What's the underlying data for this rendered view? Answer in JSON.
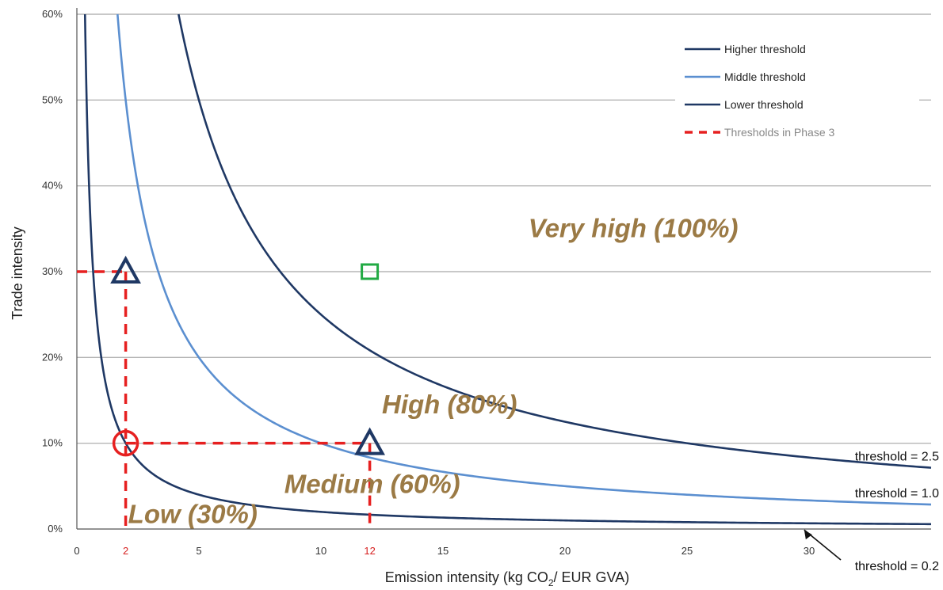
{
  "chart_data": {
    "type": "line",
    "xlabel_main": "Emission intensity (kg CO",
    "xlabel_sub": "2",
    "xlabel_tail": "/ EUR GVA)",
    "ylabel": "Trade intensity",
    "xlim": [
      0,
      35
    ],
    "ylim": [
      0,
      60
    ],
    "x_ticks": [
      {
        "value": 0,
        "label": "0"
      },
      {
        "value": 5,
        "label": "5"
      },
      {
        "value": 10,
        "label": "10"
      },
      {
        "value": 15,
        "label": "15"
      },
      {
        "value": 20,
        "label": "20"
      },
      {
        "value": 25,
        "label": "25"
      },
      {
        "value": 30,
        "label": "30"
      }
    ],
    "x_ticks_red": [
      {
        "value": 2,
        "label": "2"
      },
      {
        "value": 12,
        "label": "12"
      }
    ],
    "y_ticks": [
      {
        "value": 0,
        "label": "0%"
      },
      {
        "value": 10,
        "label": "10%"
      },
      {
        "value": 20,
        "label": "20%"
      },
      {
        "value": 30,
        "label": "30%"
      },
      {
        "value": 40,
        "label": "40%"
      },
      {
        "value": 50,
        "label": "50%"
      },
      {
        "value": 60,
        "label": "60%"
      }
    ],
    "grid": true,
    "series": [
      {
        "name": "Higher threshold",
        "product": 2.5,
        "color": "#1f3864"
      },
      {
        "name": "Middle threshold",
        "product": 1.0,
        "color": "#5b8fd0"
      },
      {
        "name": "Lower threshold",
        "product": 0.2,
        "color": "#1f3864"
      }
    ],
    "legend_phase3": "Thresholds in Phase 3",
    "legend_position": "top-right",
    "phase3_lines": [
      {
        "from": [
          0,
          30
        ],
        "to": [
          2,
          30
        ]
      },
      {
        "from": [
          2,
          30
        ],
        "to": [
          2,
          0
        ]
      },
      {
        "from": [
          2,
          10
        ],
        "to": [
          12,
          10
        ]
      },
      {
        "from": [
          12,
          10
        ],
        "to": [
          12,
          0
        ]
      }
    ],
    "markers": [
      {
        "shape": "triangle",
        "x": 2,
        "y": 30,
        "color": "#1f3864"
      },
      {
        "shape": "triangle",
        "x": 12,
        "y": 10,
        "color": "#1f3864"
      },
      {
        "shape": "circle",
        "x": 2,
        "y": 10,
        "color": "#e62020"
      },
      {
        "shape": "square",
        "x": 12,
        "y": 30,
        "color": "#22aa44"
      }
    ],
    "regions": [
      {
        "label": "Very high (100%)",
        "x": 18.5,
        "y": 34
      },
      {
        "label": "High (80%)",
        "x": 12.5,
        "y": 13.5
      },
      {
        "label": "Medium (60%)",
        "x": 8.5,
        "y": 4.2
      },
      {
        "label": "Low (30%)",
        "x": 2.1,
        "y": 0.7
      }
    ],
    "curve_labels": [
      {
        "label": "threshold = 2.5",
        "x": 35,
        "y": 8.0
      },
      {
        "label": "threshold = 1.0",
        "x": 35,
        "y": 3.7
      },
      {
        "label": "threshold = 0.2",
        "x": 35,
        "y": -4.8
      }
    ]
  }
}
